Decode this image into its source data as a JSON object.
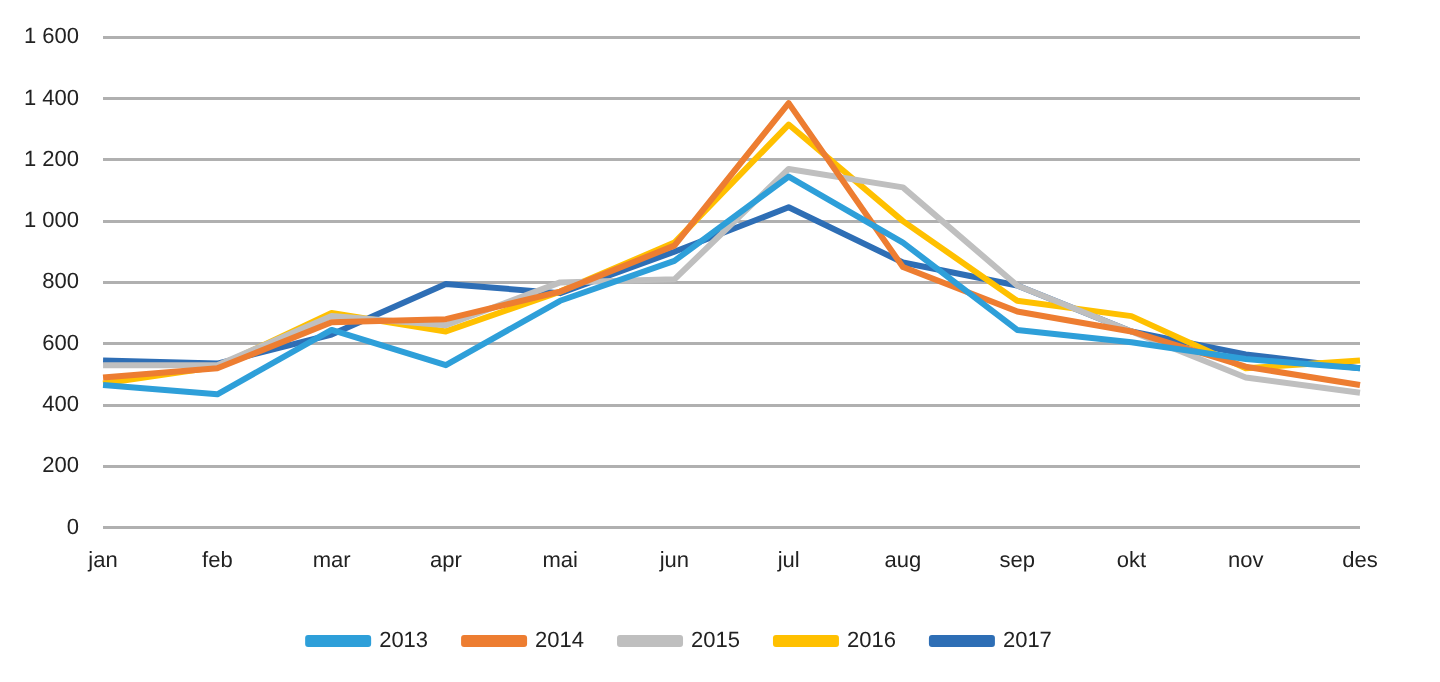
{
  "chart_data": {
    "type": "line",
    "categories": [
      "jan",
      "feb",
      "mar",
      "apr",
      "mai",
      "jun",
      "jul",
      "aug",
      "sep",
      "okt",
      "nov",
      "des"
    ],
    "series": [
      {
        "name": "2013",
        "color": "#2e9fd9",
        "values": [
          465,
          435,
          645,
          530,
          740,
          870,
          1145,
          930,
          645,
          605,
          550,
          520
        ]
      },
      {
        "name": "2014",
        "color": "#ed7d31",
        "values": [
          490,
          520,
          670,
          680,
          770,
          920,
          1385,
          850,
          705,
          640,
          525,
          465
        ]
      },
      {
        "name": "2015",
        "color": "#bfbfbf",
        "values": [
          530,
          530,
          690,
          660,
          800,
          810,
          1170,
          1110,
          790,
          640,
          490,
          440
        ]
      },
      {
        "name": "2016",
        "color": "#ffc000",
        "values": [
          470,
          525,
          700,
          640,
          770,
          930,
          1315,
          1000,
          740,
          690,
          520,
          545
        ]
      },
      {
        "name": "2017",
        "color": "#2e6eb5",
        "values": [
          545,
          535,
          630,
          795,
          765,
          900,
          1045,
          865,
          790,
          640,
          565,
          520
        ]
      }
    ],
    "ylim": [
      0,
      1600
    ],
    "yticks": [
      0,
      200,
      400,
      600,
      800,
      {
        "value": 1000,
        "label": "1 000"
      },
      {
        "value": 1200,
        "label": "1 200"
      },
      {
        "value": 1400,
        "label": "1 400"
      },
      {
        "value": 1600,
        "label": "1 600"
      }
    ],
    "grid": "y",
    "legend": "bottom",
    "marker": "none",
    "line_style": "solid"
  }
}
